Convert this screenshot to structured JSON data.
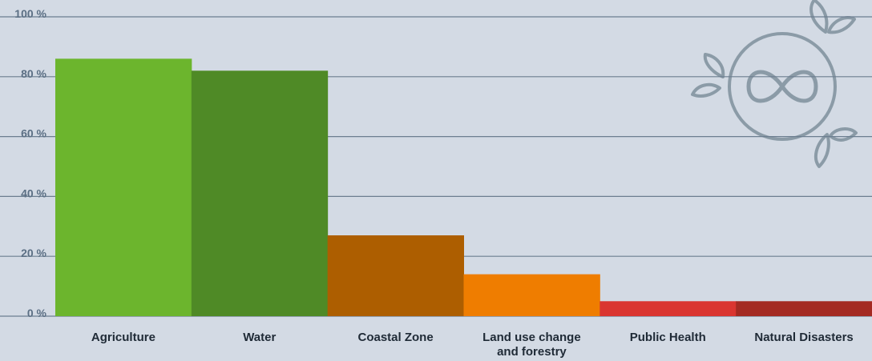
{
  "chart_data": {
    "type": "bar",
    "categories": [
      [
        "Agriculture"
      ],
      [
        "Water"
      ],
      [
        "Coastal Zone"
      ],
      [
        "Land use change",
        "and forestry"
      ],
      [
        "Public Health"
      ],
      [
        "Natural Disasters"
      ]
    ],
    "values": [
      86,
      82,
      27,
      14,
      5,
      5
    ],
    "colors": [
      "#6cb52d",
      "#4f8a26",
      "#ad5e00",
      "#ef7d00",
      "#da3530",
      "#a42a22"
    ],
    "ylim": [
      0,
      100
    ],
    "yticks": [
      0,
      20,
      40,
      60,
      80,
      100
    ],
    "ytick_labels": [
      "0 %",
      "20 %",
      "40 %",
      "60 %",
      "80 %",
      "100 %"
    ],
    "grid": true,
    "title": "",
    "xlabel": "",
    "ylabel": ""
  },
  "decor": {
    "logo_icon": "infinity-sun-icon",
    "logo_color": "#8b9ba7",
    "grid_color": "#6c7e90"
  }
}
